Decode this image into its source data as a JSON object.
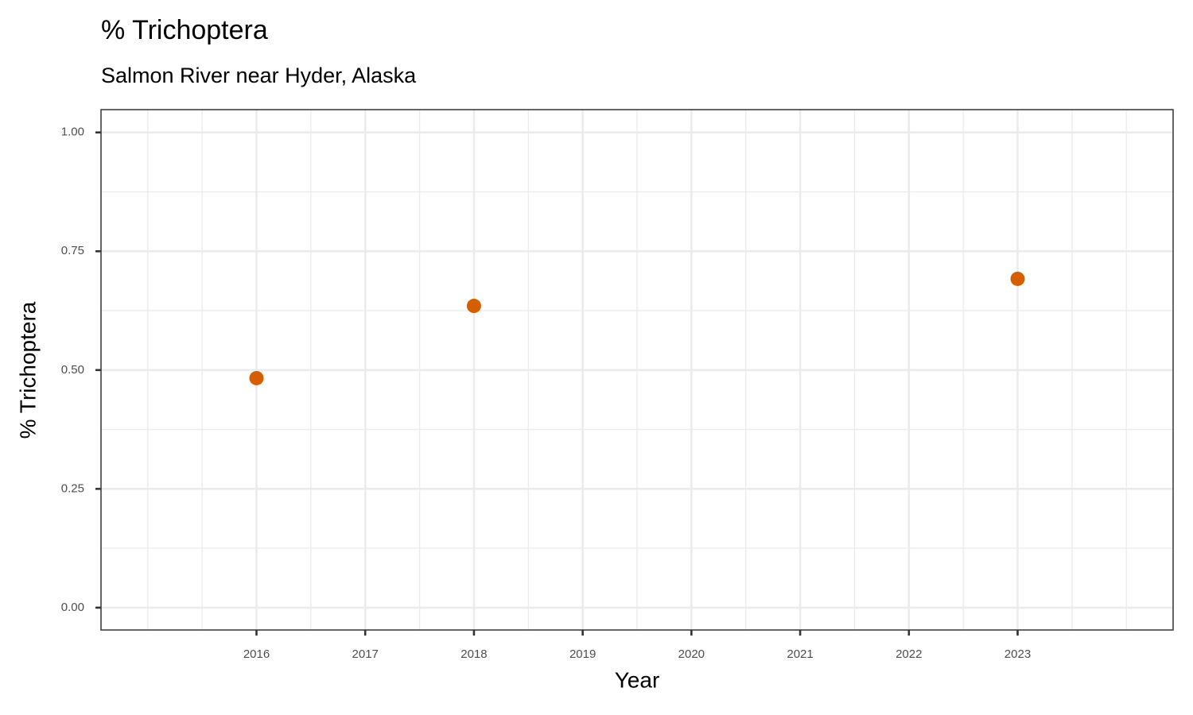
{
  "chart_data": {
    "type": "scatter",
    "title": "% Trichoptera",
    "subtitle": "Salmon River near Hyder, Alaska",
    "x_label": "Year",
    "y_label": "% Trichoptera",
    "series": [
      {
        "name": "% Trichoptera",
        "color": "#d55e00",
        "x": [
          2016,
          2018,
          2023
        ],
        "values": [
          0.483,
          0.635,
          0.692
        ]
      }
    ],
    "xlim": [
      2014.57,
      2024.43
    ],
    "xticks": [
      2016,
      2017,
      2018,
      2019,
      2020,
      2021,
      2022,
      2023
    ],
    "ylim": [
      -0.047,
      1.048
    ],
    "yticks": [
      {
        "value": 0,
        "label": "0.00"
      },
      {
        "value": 0.25,
        "label": "0.25"
      },
      {
        "value": 0.5,
        "label": "0.50"
      },
      {
        "value": 0.75,
        "label": "0.75"
      },
      {
        "value": 1,
        "label": "1.00"
      }
    ],
    "grid": true
  }
}
